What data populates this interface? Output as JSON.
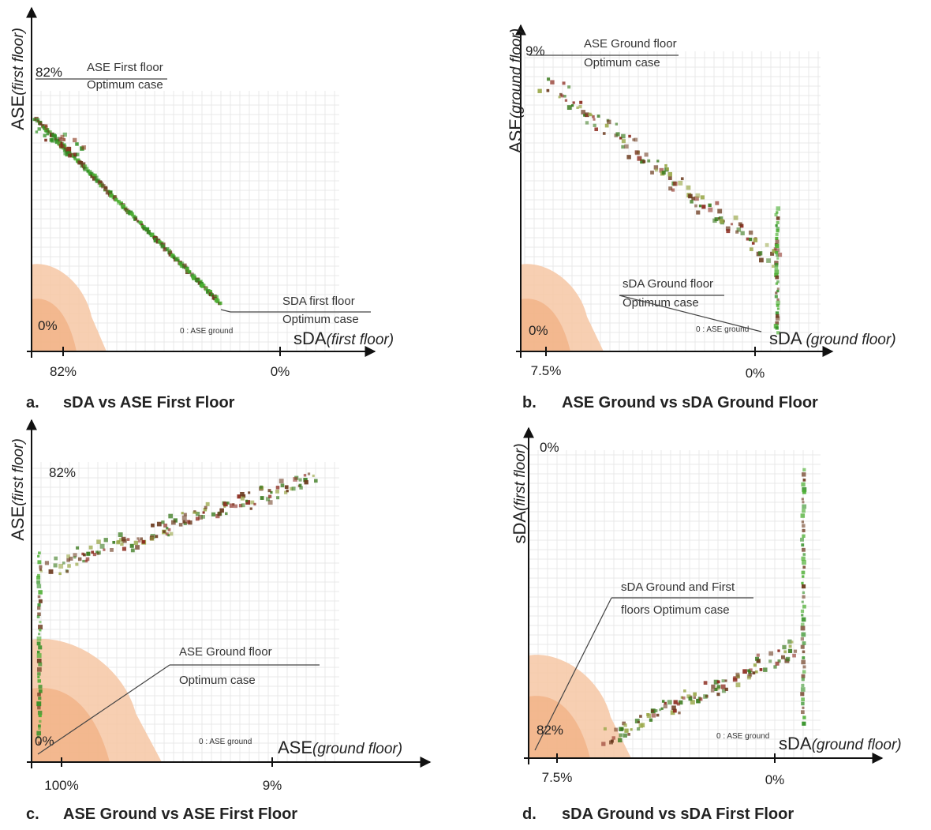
{
  "panels": [
    {
      "caption_letter": "a.",
      "caption": "sDA vs ASE First Floor",
      "y_label": "ASE",
      "y_label_sub": "(first floor)",
      "x_label": "sDA",
      "x_label_sub": "(first floor)",
      "y_top": "82%",
      "y_bottom": "0%",
      "x_left": "82%",
      "x_right": "0%",
      "annotations": [
        [
          "ASE First floor",
          "Optimum case"
        ],
        [
          "SDA first floor",
          "Optimum case"
        ]
      ],
      "legend": "0 : ASE ground"
    },
    {
      "caption_letter": "b.",
      "caption": "ASE Ground vs sDA Ground Floor",
      "y_label": "ASE",
      "y_label_sub": "(ground floor)",
      "x_label": "sDA ",
      "x_label_sub": "(ground floor)",
      "y_top": "9%",
      "y_bottom": "0%",
      "x_left": "7.5%",
      "x_right": "0%",
      "annotations": [
        [
          "ASE Ground floor",
          "Optimum case"
        ],
        [
          "sDA Ground floor",
          "Optimum case"
        ]
      ],
      "legend": "0 : ASE ground"
    },
    {
      "caption_letter": "c.",
      "caption": "ASE Ground vs ASE First Floor",
      "y_label": "ASE",
      "y_label_sub": "(first floor)",
      "x_label": "ASE",
      "x_label_sub": "(ground floor)",
      "y_top": "82%",
      "y_bottom": "0%",
      "x_left": "100%",
      "x_right": "9%",
      "annotations": [
        [
          "ASE Ground floor",
          "Optimum case"
        ]
      ],
      "legend": "0 : ASE ground"
    },
    {
      "caption_letter": "d.",
      "caption": "sDA Ground vs sDA First Floor",
      "y_label": "sDA",
      "y_label_sub": "(first floor)",
      "x_label": "sDA",
      "x_label_sub": "(ground floor)",
      "y_top": "0%",
      "y_bottom": "82%",
      "x_left": "7.5%",
      "x_right": "0%",
      "annotations": [
        [
          "sDA Ground and First",
          "floors Optimum case"
        ]
      ],
      "legend": "0 : ASE ground"
    }
  ]
}
